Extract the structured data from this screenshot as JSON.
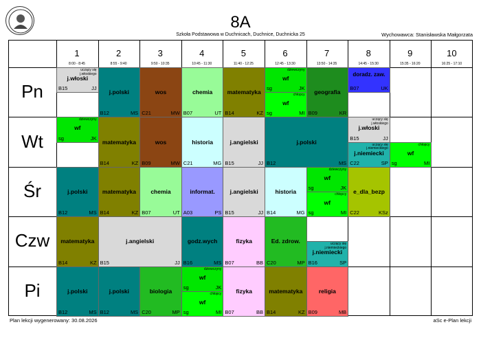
{
  "header": {
    "class_name": "8A",
    "school": "Szkoła Podstawowa w Duchnicach, Duchnice, Duchnicka 25",
    "teacher": "Wychowawca: Stanisławska Małgorzata"
  },
  "periods": [
    {
      "num": "1",
      "time": "8:00 - 8:45"
    },
    {
      "num": "2",
      "time": "8:55 - 9:40"
    },
    {
      "num": "3",
      "time": "9:50 - 10:35"
    },
    {
      "num": "4",
      "time": "10:45 - 11:30"
    },
    {
      "num": "5",
      "time": "11:40 - 12:25"
    },
    {
      "num": "6",
      "time": "12:45 - 13:30"
    },
    {
      "num": "7",
      "time": "13:50 - 14:35"
    },
    {
      "num": "8",
      "time": "14:45 - 15:30"
    },
    {
      "num": "9",
      "time": "15:35 - 16:20"
    },
    {
      "num": "10",
      "time": "16:25 - 17:10"
    }
  ],
  "days": [
    "Pn",
    "Wt",
    "Śr",
    "Czw",
    "Pi"
  ],
  "lessons": [
    {
      "day": 0,
      "start": 0,
      "span": 1,
      "half": "top",
      "subject": "j.włoski",
      "room": "B15",
      "teacher": "JJ",
      "group": "uczący się j.włoskiego",
      "color": "#d9d9d9"
    },
    {
      "day": 0,
      "start": 1,
      "span": 1,
      "subject": "j.polski",
      "room": "B12",
      "teacher": "MS",
      "color": "#008080"
    },
    {
      "day": 0,
      "start": 2,
      "span": 1,
      "subject": "wos",
      "room": "C21",
      "teacher": "MW",
      "color": "#8b4513"
    },
    {
      "day": 0,
      "start": 3,
      "span": 1,
      "subject": "chemia",
      "room": "B07",
      "teacher": "UT",
      "color": "#98fb98"
    },
    {
      "day": 0,
      "start": 4,
      "span": 1,
      "subject": "matematyka",
      "room": "B14",
      "teacher": "KZ",
      "color": "#808000"
    },
    {
      "day": 0,
      "start": 5,
      "span": 1,
      "half": "top",
      "subject": "wf",
      "room": "sg",
      "teacher": "JK",
      "group": "dziewczyny",
      "color": "#00e600"
    },
    {
      "day": 0,
      "start": 5,
      "span": 1,
      "half": "bottom",
      "subject": "wf",
      "room": "sg",
      "teacher": "MI",
      "group": "chłopcy",
      "color": "#00ff00"
    },
    {
      "day": 0,
      "start": 6,
      "span": 1,
      "subject": "geografia",
      "room": "B09",
      "teacher": "KR",
      "color": "#1e8c1e"
    },
    {
      "day": 0,
      "start": 7,
      "span": 1,
      "half": "top",
      "subject": "doradz. zaw.",
      "room": "B07",
      "teacher": "UK",
      "color": "#3333ff"
    },
    {
      "day": 1,
      "start": 0,
      "span": 1,
      "half": "top",
      "subject": "wf",
      "room": "sg",
      "teacher": "JK",
      "group": "dziewczyny",
      "color": "#00e600"
    },
    {
      "day": 1,
      "start": 1,
      "span": 1,
      "subject": "matematyka",
      "room": "B14",
      "teacher": "KZ",
      "color": "#808000"
    },
    {
      "day": 1,
      "start": 2,
      "span": 1,
      "subject": "wos",
      "room": "B09",
      "teacher": "MW",
      "color": "#8b4513"
    },
    {
      "day": 1,
      "start": 3,
      "span": 1,
      "subject": "historia",
      "room": "C21",
      "teacher": "MG",
      "color": "#ccffff"
    },
    {
      "day": 1,
      "start": 4,
      "span": 1,
      "subject": "j.angielski",
      "room": "B15",
      "teacher": "JJ",
      "color": "#d9d9d9"
    },
    {
      "day": 1,
      "start": 5,
      "span": 2,
      "subject": "j.polski",
      "room": "B12",
      "teacher": "MS",
      "color": "#008080"
    },
    {
      "day": 1,
      "start": 7,
      "span": 1,
      "half": "top",
      "subject": "j.włoski",
      "room": "B15",
      "teacher": "JJ",
      "group": "uczący się j.włoskiego",
      "color": "#d9d9d9"
    },
    {
      "day": 1,
      "start": 7,
      "span": 1,
      "half": "bottom",
      "subject": "j.niemiecki",
      "room": "C22",
      "teacher": "SP",
      "group": "uczący się j.niemieckiego",
      "color": "#20b2aa"
    },
    {
      "day": 1,
      "start": 8,
      "span": 1,
      "half": "bottom",
      "subject": "wf",
      "room": "sg",
      "teacher": "MI",
      "group": "chłopcy",
      "color": "#00ff00"
    },
    {
      "day": 2,
      "start": 0,
      "span": 1,
      "subject": "j.polski",
      "room": "B12",
      "teacher": "MS",
      "color": "#008080"
    },
    {
      "day": 2,
      "start": 1,
      "span": 1,
      "subject": "matematyka",
      "room": "B14",
      "teacher": "KZ",
      "color": "#808000"
    },
    {
      "day": 2,
      "start": 2,
      "span": 1,
      "subject": "chemia",
      "room": "B07",
      "teacher": "UT",
      "color": "#98fb98"
    },
    {
      "day": 2,
      "start": 3,
      "span": 1,
      "subject": "informat.",
      "room": "A03",
      "teacher": "PS",
      "color": "#9999ff"
    },
    {
      "day": 2,
      "start": 4,
      "span": 1,
      "subject": "j.angielski",
      "room": "B15",
      "teacher": "JJ",
      "color": "#d9d9d9"
    },
    {
      "day": 2,
      "start": 5,
      "span": 1,
      "subject": "historia",
      "room": "B14",
      "teacher": "MG",
      "color": "#ccffff"
    },
    {
      "day": 2,
      "start": 6,
      "span": 1,
      "half": "top",
      "subject": "wf",
      "room": "sg",
      "teacher": "JK",
      "group": "dziewczyny",
      "color": "#00e600"
    },
    {
      "day": 2,
      "start": 6,
      "span": 1,
      "half": "bottom",
      "subject": "wf",
      "room": "sg",
      "teacher": "MI",
      "group": "chłopcy",
      "color": "#00ff00"
    },
    {
      "day": 2,
      "start": 7,
      "span": 1,
      "subject": "e_dla_bezp",
      "room": "C22",
      "teacher": "KSz",
      "color": "#a5c400"
    },
    {
      "day": 3,
      "start": 0,
      "span": 1,
      "subject": "matematyka",
      "room": "B14",
      "teacher": "KZ",
      "color": "#808000"
    },
    {
      "day": 3,
      "start": 1,
      "span": 2,
      "subject": "j.angielski",
      "room": "B15",
      "teacher": "JJ",
      "color": "#d9d9d9"
    },
    {
      "day": 3,
      "start": 3,
      "span": 1,
      "subject": "godz.wych",
      "room": "B16",
      "teacher": "MS",
      "color": "#008080"
    },
    {
      "day": 3,
      "start": 4,
      "span": 1,
      "subject": "fizyka",
      "room": "B07",
      "teacher": "BB",
      "color": "#ffccff"
    },
    {
      "day": 3,
      "start": 5,
      "span": 1,
      "subject": "Ed. zdrow.",
      "room": "C20",
      "teacher": "MP",
      "color": "#22bb22"
    },
    {
      "day": 3,
      "start": 6,
      "span": 1,
      "half": "bottom",
      "subject": "j.niemiecki",
      "room": "B16",
      "teacher": "SP",
      "group": "uczący się j.niemieckiego",
      "color": "#20b2aa"
    },
    {
      "day": 4,
      "start": 0,
      "span": 1,
      "subject": "j.polski",
      "room": "B12",
      "teacher": "MS",
      "color": "#008080"
    },
    {
      "day": 4,
      "start": 1,
      "span": 1,
      "subject": "j.polski",
      "room": "B12",
      "teacher": "MS",
      "color": "#008080"
    },
    {
      "day": 4,
      "start": 2,
      "span": 1,
      "subject": "biologia",
      "room": "C20",
      "teacher": "MP",
      "color": "#22bb22"
    },
    {
      "day": 4,
      "start": 3,
      "span": 1,
      "half": "top",
      "subject": "wf",
      "room": "sg",
      "teacher": "JK",
      "group": "dziewczyny",
      "color": "#00e600"
    },
    {
      "day": 4,
      "start": 3,
      "span": 1,
      "half": "bottom",
      "subject": "wf",
      "room": "sg",
      "teacher": "MI",
      "group": "chłopcy",
      "color": "#00ff00"
    },
    {
      "day": 4,
      "start": 4,
      "span": 1,
      "subject": "fizyka",
      "room": "B07",
      "teacher": "BB",
      "color": "#ffccff"
    },
    {
      "day": 4,
      "start": 5,
      "span": 1,
      "subject": "matematyka",
      "room": "B14",
      "teacher": "KZ",
      "color": "#808000"
    },
    {
      "day": 4,
      "start": 6,
      "span": 1,
      "subject": "religia",
      "room": "B09",
      "teacher": "MB",
      "color": "#ff6666"
    }
  ],
  "footer": {
    "generated": "Plan lekcji wygenerowany: 30.08.2026",
    "brand": "aSc e-Plan lekcji"
  }
}
